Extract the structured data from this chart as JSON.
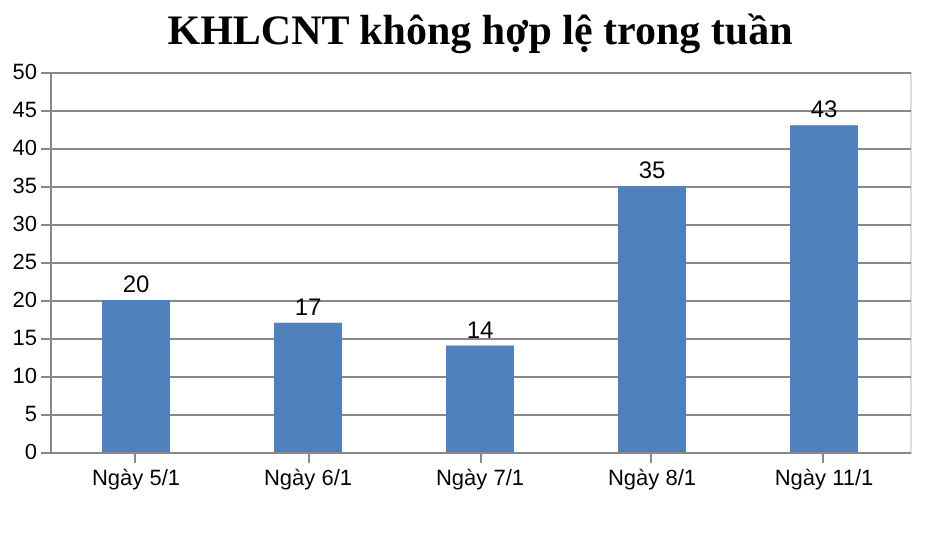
{
  "chart_data": {
    "type": "bar",
    "title": "KHLCNT không hợp lệ trong tuần",
    "categories": [
      "Ngày 5/1",
      "Ngày 6/1",
      "Ngày 7/1",
      "Ngày 8/1",
      "Ngày 11/1"
    ],
    "values": [
      20,
      17,
      14,
      35,
      43
    ],
    "color": "#4f81bd",
    "ylim": [
      0,
      50
    ],
    "yticks": [
      0,
      5,
      10,
      15,
      20,
      25,
      30,
      35,
      40,
      45,
      50
    ],
    "grid": "y",
    "data_labels": true
  }
}
